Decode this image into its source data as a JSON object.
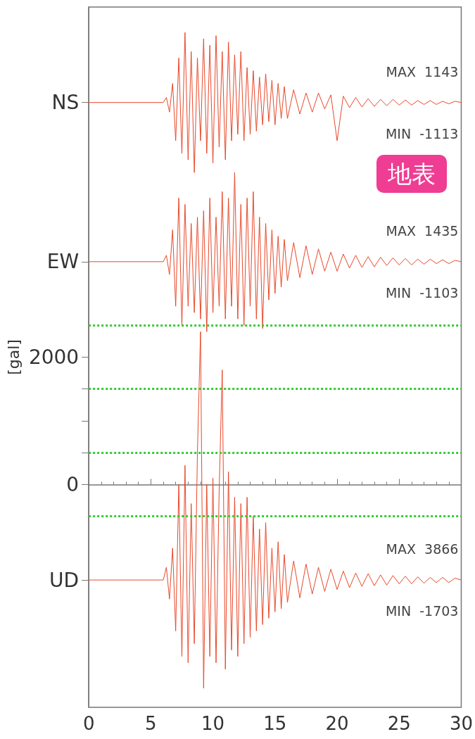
{
  "chart_data": {
    "type": "line",
    "ylabel": "[gal]",
    "x": [
      0,
      6,
      6.25,
      6.5,
      6.75,
      7,
      7.25,
      7.5,
      7.75,
      8,
      8.25,
      8.5,
      8.75,
      9,
      9.25,
      9.5,
      9.75,
      10,
      10.25,
      10.5,
      10.75,
      11,
      11.25,
      11.5,
      11.75,
      12,
      12.25,
      12.5,
      12.75,
      13,
      13.25,
      13.5,
      13.75,
      14,
      14.25,
      14.5,
      14.75,
      15,
      15.25,
      15.5,
      15.75,
      16,
      16.5,
      17,
      17.5,
      18,
      18.5,
      19,
      19.5,
      20,
      20.5,
      21,
      21.5,
      22,
      22.5,
      23,
      23.5,
      24,
      24.5,
      25,
      25.5,
      26,
      26.5,
      27,
      27.5,
      28,
      28.5,
      29,
      29.5,
      30
    ],
    "series": [
      {
        "color": "#e8482a",
        "values": [
          6000,
          6000,
          6080,
          5850,
          6300,
          5400,
          6700,
          5200,
          7100,
          5100,
          6800,
          4900,
          6700,
          5400,
          7000,
          5200,
          6900,
          5050,
          7050,
          5300,
          6800,
          5100,
          6950,
          5400,
          6750,
          5500,
          6800,
          5400,
          6550,
          5500,
          6500,
          5550,
          6400,
          5650,
          6450,
          5700,
          6350,
          5650,
          6300,
          5750,
          6250,
          5750,
          6200,
          5820,
          6150,
          5850,
          6150,
          5900,
          6120,
          5400,
          6100,
          5920,
          6080,
          5930,
          6060,
          5940,
          6050,
          5950,
          6050,
          5960,
          6040,
          5960,
          6030,
          5970,
          6030,
          5970,
          6020,
          5980,
          6020,
          6000
        ]
      },
      {
        "color": "#e8482a",
        "values": [
          3500,
          3500,
          3600,
          3300,
          4000,
          2800,
          4500,
          2500,
          4400,
          2800,
          4100,
          2700,
          4200,
          2600,
          4300,
          2400,
          4500,
          2700,
          4200,
          2800,
          4600,
          2600,
          4500,
          2800,
          4900,
          2600,
          4400,
          2500,
          4500,
          2800,
          4600,
          2600,
          4200,
          2450,
          4100,
          2900,
          4000,
          3000,
          3900,
          3100,
          3850,
          3200,
          3800,
          3250,
          3750,
          3300,
          3700,
          3350,
          3650,
          3350,
          3620,
          3400,
          3600,
          3410,
          3580,
          3420,
          3570,
          3440,
          3560,
          3450,
          3550,
          3450,
          3540,
          3460,
          3540,
          3470,
          3530,
          3470,
          3520,
          3500
        ]
      },
      {
        "color": "#e8482a",
        "values": [
          -1500,
          -1500,
          -1300,
          -1800,
          -1000,
          -2300,
          0,
          -2700,
          300,
          -2800,
          -300,
          -2500,
          500,
          2400,
          -3200,
          0,
          -2700,
          100,
          -2800,
          -100,
          1800,
          -2900,
          200,
          -2600,
          -200,
          -2700,
          -300,
          -2500,
          -200,
          -2400,
          -500,
          -2300,
          -700,
          -2200,
          -600,
          -2100,
          -1000,
          -2000,
          -900,
          -1950,
          -1100,
          -1850,
          -1200,
          -1780,
          -1250,
          -1720,
          -1300,
          -1680,
          -1330,
          -1650,
          -1360,
          -1620,
          -1390,
          -1600,
          -1400,
          -1590,
          -1420,
          -1580,
          -1430,
          -1560,
          -1440,
          -1560,
          -1450,
          -1550,
          -1460,
          -1540,
          -1460,
          -1540,
          -1470,
          -1500
        ]
      }
    ],
    "xlim": [
      0,
      30
    ],
    "xticks": [
      0,
      5,
      10,
      15,
      20,
      25,
      30
    ],
    "ylim": [
      -3500,
      7500
    ],
    "yticks": [
      {
        "value": 6000,
        "label": "NS"
      },
      {
        "value": 3500,
        "label": "EW"
      },
      {
        "value": -1500,
        "label": "UD"
      },
      0,
      {
        "value": 500,
        "label": null
      },
      {
        "value": 1000,
        "label": null
      },
      {
        "value": 1500,
        "label": null
      },
      2000
    ],
    "ref_lines": [
      {
        "axis": "y",
        "value": 2500,
        "color": "#33cc33",
        "line_style": "dotted"
      },
      {
        "axis": "y",
        "value": 1500,
        "color": "#33cc33",
        "line_style": "dotted"
      },
      {
        "axis": "y",
        "value": 500,
        "color": "#33cc33",
        "line_style": "dotted"
      },
      {
        "axis": "y",
        "value": -500,
        "color": "#33cc33",
        "line_style": "dotted"
      }
    ],
    "annotations": [
      "MAX  1143",
      "MIN  -1113",
      "MAX  1435",
      "MIN  -1103",
      "MAX  3866",
      "MIN  -1703",
      "地表"
    ],
    "grid": false,
    "marker": "none",
    "line_style": "solid"
  }
}
